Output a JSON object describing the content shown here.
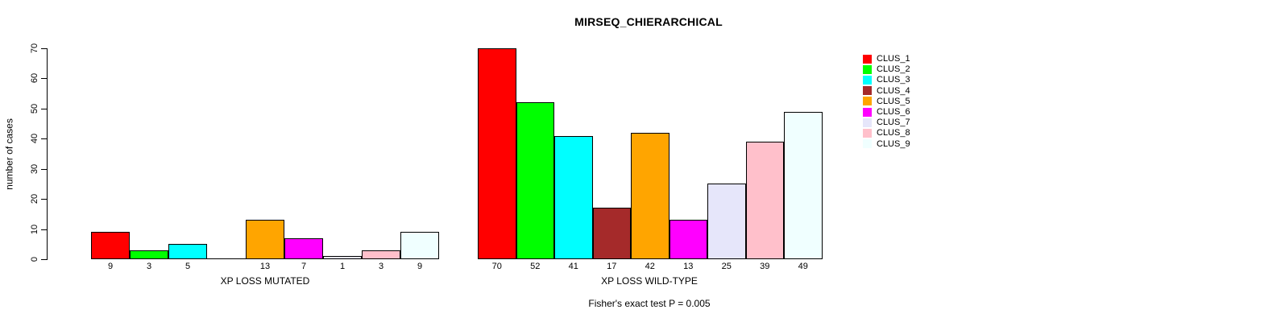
{
  "title": "MIRSEQ_CHIERARCHICAL",
  "y_axis": {
    "label": "number of cases",
    "ticks": [
      0,
      10,
      20,
      30,
      40,
      50,
      60,
      70
    ]
  },
  "annotation": "Fisher's exact test P = 0.005",
  "chart_data": {
    "type": "bar",
    "title": "MIRSEQ_CHIERARCHICAL",
    "xlabel": "",
    "ylabel": "number of cases",
    "ylim": [
      0,
      70
    ],
    "grid": false,
    "legend_position": "right",
    "categories": [
      "CLUS_1",
      "CLUS_2",
      "CLUS_3",
      "CLUS_4",
      "CLUS_5",
      "CLUS_6",
      "CLUS_7",
      "CLUS_8",
      "CLUS_9"
    ],
    "colors": [
      "#FF0000",
      "#00FF00",
      "#00FFFF",
      "#A52A2A",
      "#FFA500",
      "#FF00FF",
      "#E6E6FA",
      "#FFC0CB",
      "#F0FFFF"
    ],
    "groups": [
      {
        "label": "XP LOSS MUTATED",
        "values": [
          9,
          3,
          5,
          0,
          13,
          7,
          1,
          3,
          9
        ],
        "bar_labels": [
          "9",
          "3",
          "5",
          "",
          "13",
          "7",
          "1",
          "3",
          "9"
        ]
      },
      {
        "label": "XP LOSS WILD-TYPE",
        "values": [
          70,
          52,
          41,
          17,
          42,
          13,
          25,
          39,
          49
        ],
        "bar_labels": [
          "70",
          "52",
          "41",
          "17",
          "42",
          "13",
          "25",
          "39",
          "49"
        ]
      }
    ],
    "annotation": "Fisher's exact test P = 0.005"
  }
}
